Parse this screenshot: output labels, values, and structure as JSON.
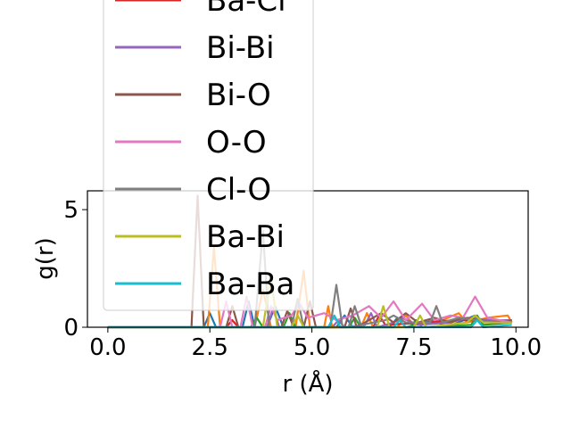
{
  "chart_data": {
    "type": "line",
    "xlabel": "r (Å)",
    "ylabel": "g(r)",
    "xlim": [
      -0.5,
      10.3
    ],
    "ylim": [
      0,
      5.8
    ],
    "x_ticks": [
      0.0,
      2.5,
      5.0,
      7.5,
      10.0
    ],
    "x_tick_labels": [
      "0.0",
      "2.5",
      "5.0",
      "7.5",
      "10.0"
    ],
    "y_ticks": [
      0,
      5
    ],
    "y_tick_labels": [
      "0",
      "5"
    ],
    "grid": false,
    "legend_position": "upper-left, extending above plot",
    "series": [
      {
        "name": "",
        "color": "#1f77b4",
        "points": [
          [
            0,
            0
          ],
          [
            2.0,
            0
          ],
          [
            2.35,
            0
          ],
          [
            2.5,
            0.6
          ],
          [
            2.65,
            0
          ],
          [
            3.3,
            0
          ],
          [
            3.45,
            1.1
          ],
          [
            3.6,
            0
          ],
          [
            3.9,
            0
          ],
          [
            4.1,
            0.9
          ],
          [
            4.3,
            0
          ],
          [
            5.6,
            0
          ],
          [
            5.8,
            0.5
          ],
          [
            6.0,
            0
          ],
          [
            6.9,
            0
          ],
          [
            7.1,
            0.4
          ],
          [
            7.3,
            0
          ],
          [
            8.0,
            0.3
          ],
          [
            8.3,
            0
          ],
          [
            9.0,
            0.5
          ],
          [
            9.2,
            0.2
          ],
          [
            9.5,
            0.3
          ],
          [
            9.9,
            0.2
          ]
        ]
      },
      {
        "name": "",
        "color": "#ff7f0e",
        "points": [
          [
            0,
            0
          ],
          [
            2.45,
            0
          ],
          [
            2.6,
            3.4
          ],
          [
            2.75,
            0
          ],
          [
            3.6,
            0
          ],
          [
            3.8,
            1.6
          ],
          [
            4.0,
            0
          ],
          [
            4.6,
            0
          ],
          [
            4.8,
            2.4
          ],
          [
            4.95,
            0
          ],
          [
            5.3,
            0
          ],
          [
            5.4,
            0.9
          ],
          [
            5.5,
            0
          ],
          [
            6.2,
            0
          ],
          [
            6.35,
            0.6
          ],
          [
            6.5,
            0
          ],
          [
            7.1,
            0
          ],
          [
            7.3,
            0.5
          ],
          [
            7.5,
            0.1
          ],
          [
            8.2,
            0.3
          ],
          [
            8.6,
            0.6
          ],
          [
            8.8,
            0.2
          ],
          [
            9.3,
            0.4
          ],
          [
            9.8,
            0.5
          ],
          [
            9.9,
            0.2
          ]
        ]
      },
      {
        "name": "",
        "color": "#2ca02c",
        "points": [
          [
            0,
            0
          ],
          [
            3.5,
            0
          ],
          [
            3.65,
            0.4
          ],
          [
            3.8,
            0
          ],
          [
            4.3,
            0
          ],
          [
            4.45,
            0.6
          ],
          [
            4.6,
            0
          ],
          [
            5.9,
            0
          ],
          [
            6.05,
            0.4
          ],
          [
            6.2,
            0
          ],
          [
            7.4,
            0
          ],
          [
            7.55,
            0.3
          ],
          [
            7.7,
            0
          ],
          [
            8.9,
            0.1
          ],
          [
            9.05,
            0.5
          ],
          [
            9.2,
            0.1
          ],
          [
            9.9,
            0.2
          ]
        ]
      },
      {
        "name": "",
        "color": "#d62728",
        "points": [
          [
            0,
            0
          ],
          [
            2.9,
            0
          ],
          [
            3.05,
            0.3
          ],
          [
            3.2,
            0
          ],
          [
            6.5,
            0
          ],
          [
            6.65,
            0.5
          ],
          [
            6.8,
            0.1
          ],
          [
            7.8,
            0.2
          ],
          [
            8.5,
            0.3
          ],
          [
            9.2,
            0.3
          ],
          [
            9.6,
            0.2
          ],
          [
            9.9,
            0.3
          ]
        ]
      },
      {
        "name": "Bi-Bi",
        "color": "#9467bd",
        "points": [
          [
            0,
            0
          ],
          [
            3.9,
            0
          ],
          [
            4.05,
            0.8
          ],
          [
            4.2,
            0
          ],
          [
            5.5,
            0
          ],
          [
            5.65,
            0.3
          ],
          [
            5.8,
            0
          ],
          [
            6.3,
            0.1
          ],
          [
            6.45,
            0.6
          ],
          [
            6.6,
            0
          ],
          [
            7.0,
            0.2
          ],
          [
            7.2,
            0.4
          ],
          [
            7.6,
            0.1
          ],
          [
            8.4,
            0.2
          ],
          [
            8.8,
            0.4
          ],
          [
            9.4,
            0.3
          ],
          [
            9.9,
            0.3
          ]
        ]
      },
      {
        "name": "Bi-O",
        "color": "#8c564b",
        "points": [
          [
            0,
            0
          ],
          [
            2.05,
            0
          ],
          [
            2.2,
            5.6
          ],
          [
            2.35,
            0
          ],
          [
            2.9,
            0
          ],
          [
            3.05,
            0.9
          ],
          [
            3.2,
            0
          ],
          [
            4.25,
            0
          ],
          [
            4.4,
            0.7
          ],
          [
            4.55,
            0
          ],
          [
            4.8,
            0
          ],
          [
            4.95,
            1.1
          ],
          [
            5.1,
            0
          ],
          [
            5.8,
            0
          ],
          [
            5.95,
            0.8
          ],
          [
            6.1,
            0
          ],
          [
            6.4,
            0.3
          ],
          [
            6.7,
            0.6
          ],
          [
            7.0,
            0.2
          ],
          [
            7.3,
            0.6
          ],
          [
            7.6,
            0.2
          ],
          [
            8.0,
            0.4
          ],
          [
            8.4,
            0.2
          ],
          [
            8.7,
            0.4
          ],
          [
            9.1,
            0.3
          ],
          [
            9.5,
            0.2
          ],
          [
            9.9,
            0.3
          ]
        ]
      },
      {
        "name": "O-O",
        "color": "#e377c2",
        "points": [
          [
            0,
            0
          ],
          [
            2.75,
            0
          ],
          [
            2.9,
            1.1
          ],
          [
            3.05,
            0
          ],
          [
            3.25,
            0
          ],
          [
            3.4,
            1.3
          ],
          [
            3.55,
            0
          ],
          [
            3.85,
            0
          ],
          [
            4.0,
            0.9
          ],
          [
            4.15,
            0.3
          ],
          [
            4.5,
            0.5
          ],
          [
            4.7,
            1.0
          ],
          [
            4.9,
            0.4
          ],
          [
            5.3,
            0.6
          ],
          [
            5.6,
            0.3
          ],
          [
            6.0,
            0.5
          ],
          [
            6.4,
            0.9
          ],
          [
            6.7,
            0.4
          ],
          [
            7.0,
            1.1
          ],
          [
            7.3,
            0.3
          ],
          [
            7.7,
            1.0
          ],
          [
            8.0,
            0.3
          ],
          [
            8.4,
            0.5
          ],
          [
            8.7,
            0.4
          ],
          [
            9.0,
            1.3
          ],
          [
            9.3,
            0.4
          ],
          [
            9.6,
            0.3
          ],
          [
            9.9,
            0.2
          ]
        ]
      },
      {
        "name": "Cl-O",
        "color": "#7f7f7f",
        "points": [
          [
            0,
            0
          ],
          [
            3.6,
            0
          ],
          [
            3.8,
            4.1
          ],
          [
            3.95,
            0
          ],
          [
            4.5,
            0
          ],
          [
            4.65,
            1.2
          ],
          [
            4.8,
            0
          ],
          [
            5.45,
            0
          ],
          [
            5.6,
            1.8
          ],
          [
            5.75,
            0
          ],
          [
            5.9,
            0
          ],
          [
            6.05,
            0.9
          ],
          [
            6.2,
            0.1
          ],
          [
            6.8,
            0.3
          ],
          [
            7.0,
            0.5
          ],
          [
            7.3,
            0.2
          ],
          [
            7.9,
            0.2
          ],
          [
            8.05,
            0.9
          ],
          [
            8.2,
            0.2
          ],
          [
            8.6,
            0.4
          ],
          [
            9.0,
            0.3
          ],
          [
            9.5,
            0.2
          ],
          [
            9.9,
            0.2
          ]
        ]
      },
      {
        "name": "Ba-Bi",
        "color": "#bcbd22",
        "points": [
          [
            0,
            0
          ],
          [
            3.8,
            0
          ],
          [
            4.0,
            2.2
          ],
          [
            4.15,
            0
          ],
          [
            4.5,
            0
          ],
          [
            4.65,
            0.5
          ],
          [
            4.8,
            0
          ],
          [
            6.6,
            0
          ],
          [
            6.75,
            0.9
          ],
          [
            6.9,
            0
          ],
          [
            7.5,
            0
          ],
          [
            7.65,
            0.5
          ],
          [
            7.8,
            0
          ],
          [
            8.8,
            0.2
          ],
          [
            9.0,
            0.5
          ],
          [
            9.2,
            0.2
          ],
          [
            9.9,
            0.2
          ]
        ]
      },
      {
        "name": "Ba-Ba",
        "color": "#17becf",
        "points": [
          [
            0,
            0
          ],
          [
            5.4,
            0
          ],
          [
            5.55,
            0.5
          ],
          [
            5.7,
            0
          ],
          [
            7.0,
            0
          ],
          [
            7.15,
            0.3
          ],
          [
            7.3,
            0
          ],
          [
            8.9,
            0
          ],
          [
            9.05,
            0.3
          ],
          [
            9.2,
            0
          ],
          [
            9.9,
            0.1
          ]
        ]
      }
    ],
    "legend": [
      {
        "label": "Ba-Cl",
        "color": "#d62728"
      },
      {
        "label": "Bi-Bi",
        "color": "#9467bd"
      },
      {
        "label": "Bi-O",
        "color": "#8c564b"
      },
      {
        "label": "O-O",
        "color": "#e377c2"
      },
      {
        "label": "Cl-O",
        "color": "#7f7f7f"
      },
      {
        "label": "Ba-Bi",
        "color": "#bcbd22"
      },
      {
        "label": "Ba-Ba",
        "color": "#17becf"
      }
    ]
  }
}
